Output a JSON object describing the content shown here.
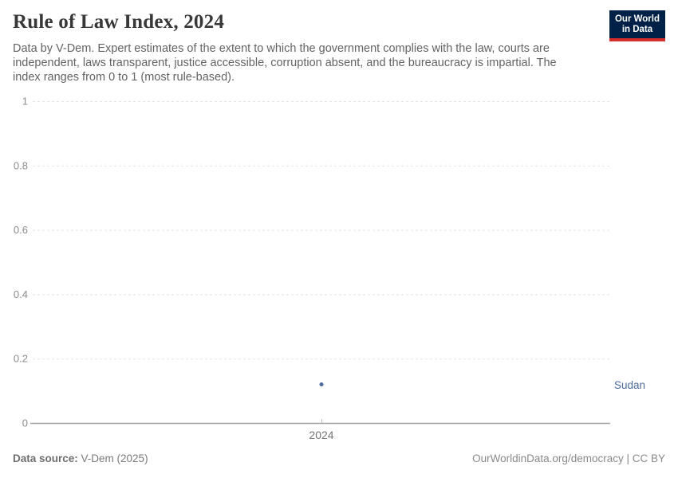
{
  "header": {
    "title": "Rule of Law Index, 2024",
    "subtitle": "Data by V-Dem. Expert estimates of the extent to which the government complies with the law, courts are independent, laws transparent, justice accessible, corruption absent, and the bureaucracy is impartial. The index ranges from 0 to 1 (most rule-based).",
    "logo": {
      "line1": "Our World",
      "line2": "in Data"
    }
  },
  "chart_data": {
    "type": "scatter",
    "title": "Rule of Law Index, 2024",
    "x": [
      2024
    ],
    "xtick_labels": [
      "2024"
    ],
    "series": [
      {
        "name": "Sudan",
        "values": [
          0.12
        ]
      }
    ],
    "ylim": [
      0,
      1
    ],
    "yticks": [
      0,
      0.2,
      0.4,
      0.6,
      0.8,
      1
    ],
    "ytick_labels": [
      "0",
      "0.2",
      "0.4",
      "0.6",
      "0.8",
      "1"
    ],
    "xlabel": "",
    "ylabel": "",
    "grid": "horizontal-dashed",
    "legend": "entity-label-right"
  },
  "colors": {
    "accent_blue": "#4C6A9C",
    "logo_bg": "#002147",
    "logo_red": "#D42B2B",
    "grid": "#E3E3E3",
    "axis": "#A5A5A5",
    "tick": "#BBBBBB",
    "tick_text": "#8C8C8C",
    "xtick_text": "#757575",
    "title_text": "#383838",
    "subtitle_text": "#636363"
  },
  "footer": {
    "data_source_label": "Data source:",
    "data_source_value": " V-Dem (2025)",
    "url": "OurWorldinData.org/democracy",
    "separator": " | ",
    "license": "CC BY"
  }
}
